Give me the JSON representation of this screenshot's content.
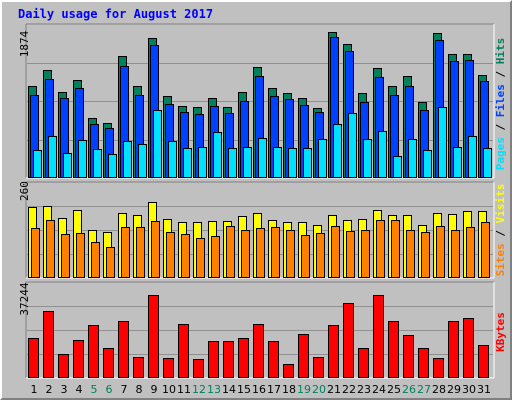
{
  "title": "Daily usage for August 2017",
  "colors": {
    "hits": "#00805c",
    "files": "#0040ff",
    "pages": "#00e0ff",
    "visits": "#ffff00",
    "sites": "#ff8000",
    "kbytes": "#ff0000",
    "weekend": "#00805c",
    "weekday": "#000000",
    "separator": "#000000"
  },
  "legend": {
    "top": [
      {
        "text": "Pages",
        "color": "#00e0ff"
      },
      {
        "text": " / ",
        "color": "#000000"
      },
      {
        "text": "Files",
        "color": "#0040ff"
      },
      {
        "text": " / ",
        "color": "#000000"
      },
      {
        "text": "Hits",
        "color": "#00805c"
      }
    ],
    "middle": [
      {
        "text": "Sites",
        "color": "#ff8000"
      },
      {
        "text": " / ",
        "color": "#000000"
      },
      {
        "text": "Visits",
        "color": "#ffff00"
      }
    ],
    "bottom": [
      {
        "text": "KBytes",
        "color": "#ff0000"
      }
    ]
  },
  "chart_data": {
    "type": "bar",
    "title": "Daily usage for August 2017",
    "categories": [
      "1",
      "2",
      "3",
      "4",
      "5",
      "6",
      "7",
      "8",
      "9",
      "10",
      "11",
      "12",
      "13",
      "14",
      "15",
      "16",
      "17",
      "18",
      "19",
      "20",
      "21",
      "22",
      "23",
      "24",
      "25",
      "26",
      "27",
      "28",
      "29",
      "30",
      "31"
    ],
    "weekend_days": [
      "5",
      "6",
      "12",
      "13",
      "19",
      "20",
      "26",
      "27"
    ],
    "panels": [
      {
        "id": "top",
        "max_label": "1874",
        "ylim": [
          0,
          1874
        ],
        "series": [
          {
            "name": "Hits",
            "values": [
              1150,
              1350,
              1080,
              1220,
              750,
              690,
              1520,
              1150,
              1750,
              1030,
              900,
              890,
              1000,
              890,
              1080,
              1390,
              1120,
              1060,
              1000,
              880,
              1830,
              1680,
              1060,
              1380,
              1150,
              1270,
              950,
              1810,
              1550,
              1550,
              1290
            ]
          },
          {
            "name": "Files",
            "values": [
              1040,
              1240,
              1000,
              1130,
              680,
              620,
              1400,
              1040,
              1660,
              930,
              830,
              800,
              900,
              810,
              960,
              1270,
              1030,
              990,
              910,
              820,
              1760,
              1590,
              950,
              1260,
              1040,
              1150,
              850,
              1730,
              1460,
              1470,
              1210
            ]
          },
          {
            "name": "Pages",
            "values": [
              350,
              530,
              310,
              470,
              360,
              300,
              460,
              420,
              850,
              460,
              380,
              390,
              580,
              380,
              390,
              500,
              390,
              370,
              380,
              490,
              680,
              810,
              490,
              590,
              280,
              490,
              350,
              890,
              390,
              520,
              370
            ]
          }
        ]
      },
      {
        "id": "middle",
        "max_label": "260",
        "ylim": [
          0,
          260
        ],
        "series": [
          {
            "name": "Visits",
            "values": [
              202,
              204,
              170,
              193,
              136,
              131,
              184,
              178,
              215,
              168,
              158,
              158,
              162,
              162,
              175,
              183,
              163,
              159,
              158,
              151,
              177,
              165,
              167,
              193,
              177,
              178,
              150,
              183,
              182,
              189,
              189
            ]
          },
          {
            "name": "Sites",
            "values": [
              140,
              163,
              124,
              128,
              103,
              89,
              144,
              145,
              162,
              130,
              124,
              113,
              120,
              148,
              135,
              140,
              144,
              135,
              122,
              127,
              146,
              132,
              135,
              164,
              163,
              136,
              130,
              146,
              135,
              145,
              159
            ]
          }
        ]
      },
      {
        "id": "bottom",
        "max_label": "37244",
        "ylim": [
          0,
          37244
        ],
        "series": [
          {
            "name": "KBytes",
            "values": [
              16000,
              27000,
              9700,
              15500,
              21500,
              12000,
              23200,
              8500,
              33500,
              8200,
              21800,
              7700,
              15000,
              14900,
              16200,
              21700,
              14900,
              5800,
              17700,
              8300,
              21400,
              30200,
              12000,
              33500,
              23200,
              17600,
              12300,
              7900,
              23200,
              24100,
              13200
            ]
          }
        ]
      }
    ]
  }
}
